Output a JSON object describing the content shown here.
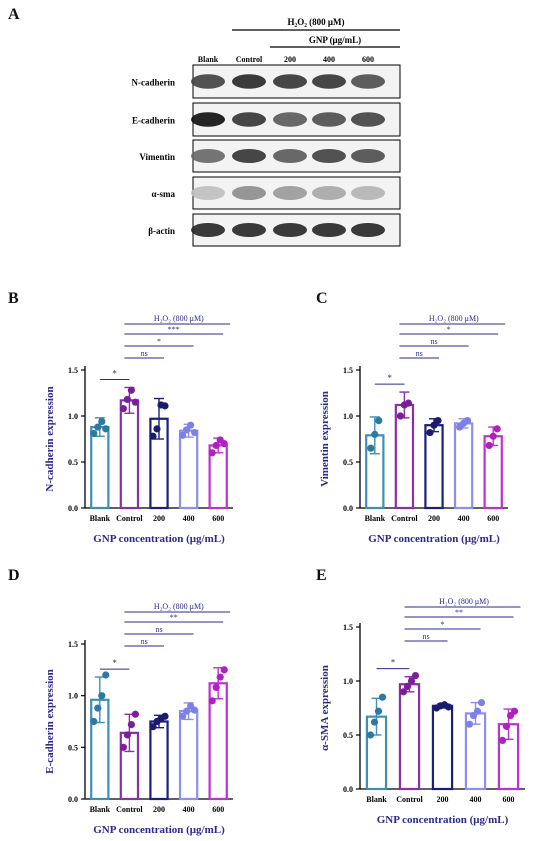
{
  "panel_letters": [
    "A",
    "B",
    "C",
    "D",
    "E"
  ],
  "blot": {
    "treatment_label": "H₂O₂ (800 μM)",
    "gnp_label": "GNP (μg/mL)",
    "lanes": [
      "Blank",
      "Control",
      "200",
      "400",
      "600"
    ],
    "rows": [
      "N-cadherin",
      "E-cadherin",
      "Vimentin",
      "α-sma",
      "β-actin"
    ]
  },
  "chart_data": [
    {
      "panel": "B",
      "type": "bar",
      "categories": [
        "Blank",
        "Control",
        "200",
        "400",
        "600"
      ],
      "values": [
        0.88,
        1.17,
        0.97,
        0.84,
        0.68
      ],
      "errors": [
        0.1,
        0.14,
        0.22,
        0.07,
        0.08
      ],
      "points": [
        [
          0.81,
          0.88,
          0.94,
          0.86
        ],
        [
          1.08,
          1.18,
          1.28,
          1.15
        ],
        [
          0.78,
          0.86,
          1.12,
          1.11
        ],
        [
          0.79,
          0.85,
          0.9,
          0.82
        ],
        [
          0.6,
          0.68,
          0.74,
          0.7
        ]
      ],
      "xlabel": "GNP concentration (μg/mL)",
      "ylabel": "N-cadherin expression",
      "ylim": [
        0,
        1.5
      ],
      "yticks": [
        "0.0",
        "0.5",
        "1.0",
        "1.5"
      ],
      "treatment_label": "H₂O₂ (800 μM)",
      "comparisons": [
        {
          "from": 0,
          "to": 1,
          "label": "*"
        },
        {
          "from": 1,
          "to": 4,
          "label": "***"
        },
        {
          "from": 1,
          "to": 3,
          "label": "*"
        },
        {
          "from": 1,
          "to": 2,
          "label": "ns"
        }
      ]
    },
    {
      "panel": "C",
      "type": "bar",
      "categories": [
        "Blank",
        "Control",
        "200",
        "400",
        "600"
      ],
      "values": [
        0.79,
        1.12,
        0.9,
        0.92,
        0.78
      ],
      "errors": [
        0.2,
        0.14,
        0.07,
        0.05,
        0.1
      ],
      "points": [
        [
          0.65,
          0.8,
          0.95
        ],
        [
          1.0,
          1.12,
          1.14
        ],
        [
          0.82,
          0.9,
          0.95
        ],
        [
          0.88,
          0.92,
          0.95
        ],
        [
          0.68,
          0.78,
          0.86
        ]
      ],
      "xlabel": "GNP concentration (μg/mL)",
      "ylabel": "Vimentin expression",
      "ylim": [
        0,
        1.5
      ],
      "yticks": [
        "0.0",
        "0.5",
        "1.0",
        "1.5"
      ],
      "treatment_label": "H₂O₂ (800 μM)",
      "comparisons": [
        {
          "from": 0,
          "to": 1,
          "label": "*"
        },
        {
          "from": 1,
          "to": 4,
          "label": "*"
        },
        {
          "from": 1,
          "to": 3,
          "label": "ns"
        },
        {
          "from": 1,
          "to": 2,
          "label": "ns"
        }
      ]
    },
    {
      "panel": "D",
      "type": "bar",
      "categories": [
        "Blank",
        "Control",
        "200",
        "400",
        "600"
      ],
      "values": [
        0.96,
        0.64,
        0.75,
        0.85,
        1.12
      ],
      "errors": [
        0.22,
        0.18,
        0.06,
        0.08,
        0.15
      ],
      "points": [
        [
          0.75,
          0.88,
          1.0,
          1.2
        ],
        [
          0.5,
          0.62,
          0.72,
          0.82
        ],
        [
          0.7,
          0.75,
          0.78,
          0.8
        ],
        [
          0.8,
          0.85,
          0.9,
          0.86
        ],
        [
          0.95,
          1.08,
          1.18,
          1.25
        ]
      ],
      "xlabel": "GNP concentration (μg/mL)",
      "ylabel": "E-cadherin expression",
      "ylim": [
        0,
        1.5
      ],
      "yticks": [
        "0.0",
        "0.5",
        "1.0",
        "1.5"
      ],
      "treatment_label": "H₂O₂ (800 μM)",
      "comparisons": [
        {
          "from": 0,
          "to": 1,
          "label": "*"
        },
        {
          "from": 1,
          "to": 4,
          "label": "**"
        },
        {
          "from": 1,
          "to": 3,
          "label": "ns"
        },
        {
          "from": 1,
          "to": 2,
          "label": "ns"
        }
      ]
    },
    {
      "panel": "E",
      "type": "bar",
      "categories": [
        "Blank",
        "Control",
        "200",
        "400",
        "600"
      ],
      "values": [
        0.67,
        0.97,
        0.77,
        0.7,
        0.6
      ],
      "errors": [
        0.17,
        0.07,
        0.02,
        0.1,
        0.14
      ],
      "points": [
        [
          0.5,
          0.62,
          0.72,
          0.85
        ],
        [
          0.9,
          0.95,
          1.0,
          1.05
        ],
        [
          0.75,
          0.77,
          0.78,
          0.76
        ],
        [
          0.6,
          0.68,
          0.72,
          0.8
        ],
        [
          0.45,
          0.58,
          0.68,
          0.72
        ]
      ],
      "xlabel": "GNP concentration (μg/mL)",
      "ylabel": "α-SMA expression",
      "ylim": [
        0,
        1.5
      ],
      "yticks": [
        "0.0",
        "0.5",
        "1.0",
        "1.5"
      ],
      "treatment_label": "H₂O₂ (800 μM)",
      "comparisons": [
        {
          "from": 0,
          "to": 1,
          "label": "*"
        },
        {
          "from": 1,
          "to": 4,
          "label": "**"
        },
        {
          "from": 1,
          "to": 3,
          "label": "*"
        },
        {
          "from": 1,
          "to": 2,
          "label": "ns"
        }
      ]
    }
  ],
  "colors": {
    "series": [
      "#3f8fb5",
      "#8a2fa8",
      "#1b1f7a",
      "#8c8ff0",
      "#c02fd3"
    ],
    "points": [
      "#2e79a0",
      "#7a1f98",
      "#1a1c6b",
      "#7d80e6",
      "#b020c0"
    ],
    "annotation": "#2a2a8f"
  }
}
